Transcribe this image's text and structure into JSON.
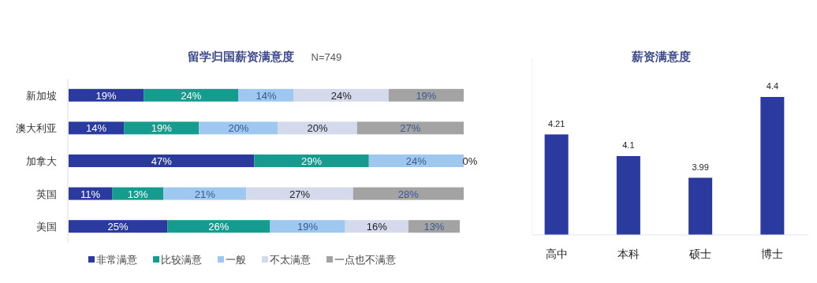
{
  "chart_data": [
    {
      "type": "bar",
      "orientation": "horizontal",
      "stacked": true,
      "title": "留学归国薪资满意度",
      "subtitle": "N=749",
      "categories": [
        "新加坡",
        "澳大利亚",
        "加拿大",
        "英国",
        "美国"
      ],
      "legend": "bottom",
      "series": [
        {
          "name": "非常满意",
          "color": "#2b3a9e",
          "values": [
            19,
            14,
            47,
            11,
            25
          ],
          "value_labels": [
            "19%",
            "14%",
            "47%",
            "11%",
            "25%"
          ]
        },
        {
          "name": "比较满意",
          "color": "#169b8f",
          "values": [
            24,
            19,
            29,
            13,
            26
          ],
          "value_labels": [
            "24%",
            "19%",
            "29%",
            "13%",
            "26%"
          ]
        },
        {
          "name": "一般",
          "color": "#9ec8f0",
          "values": [
            14,
            20,
            24,
            21,
            19
          ],
          "value_labels": [
            "14%",
            "20%",
            "24%",
            "21%",
            "19%"
          ]
        },
        {
          "name": "不太满意",
          "color": "#d5d9ec",
          "values": [
            24,
            20,
            0,
            27,
            16
          ],
          "value_labels": [
            "24%",
            "20%",
            "0%",
            "27%",
            "16%"
          ]
        },
        {
          "name": "一点也不满意",
          "color": "#a3a3a3",
          "values": [
            19,
            27,
            0,
            28,
            13
          ],
          "value_labels": [
            "19%",
            "27%",
            null,
            "28%",
            "13%"
          ]
        }
      ]
    },
    {
      "type": "bar",
      "title": "薪资满意度",
      "categories": [
        "高中",
        "本科",
        "硕士",
        "博士"
      ],
      "values": [
        4.21,
        4.1,
        3.99,
        4.4
      ],
      "color": "#2b3a9e",
      "ylim": [
        3.7,
        4.6
      ],
      "data_labels": true
    }
  ]
}
